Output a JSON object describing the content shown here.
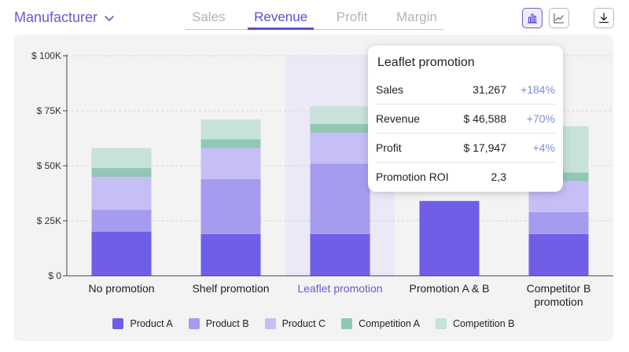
{
  "header": {
    "selector_label": "Manufacturer",
    "tabs": [
      {
        "label": "Sales"
      },
      {
        "label": "Revenue"
      },
      {
        "label": "Profit"
      },
      {
        "label": "Margin"
      }
    ],
    "active_tab": "Revenue"
  },
  "tooltip": {
    "title": "Leaflet promotion",
    "rows": [
      {
        "label": "Sales",
        "value": "31,267",
        "delta": "+184%"
      },
      {
        "label": "Revenue",
        "value": "$ 46,588",
        "delta": "+70%"
      },
      {
        "label": "Profit",
        "value": "$ 17,947",
        "delta": "+4%"
      },
      {
        "label": "Promotion ROI",
        "value": "2,3",
        "delta": ""
      }
    ]
  },
  "chart_data": {
    "type": "bar",
    "stacked": true,
    "categories": [
      "No promotion",
      "Shelf promotion",
      "Leaflet promotion",
      "Promotion A & B",
      "Competitor B promotion"
    ],
    "highlighted_category": "Leaflet promotion",
    "ylim": [
      0,
      100000
    ],
    "yticks": [
      0,
      25000,
      50000,
      75000,
      100000
    ],
    "ytick_labels": [
      "$ 0",
      "$ 25K",
      "$ 50K",
      "$ 75K",
      "$ 100K"
    ],
    "grid": true,
    "legend_position": "bottom",
    "series": [
      {
        "name": "Product A",
        "color": "#6e5ee8",
        "values": [
          20000,
          19000,
          19000,
          34000,
          19000
        ]
      },
      {
        "name": "Product B",
        "color": "#a59cef",
        "values": [
          10000,
          25000,
          32000,
          0,
          10000
        ]
      },
      {
        "name": "Product C",
        "color": "#c6bff6",
        "values": [
          15000,
          14000,
          14000,
          0,
          14000
        ]
      },
      {
        "name": "Competition A",
        "color": "#92c7b6",
        "values": [
          4000,
          4000,
          4000,
          0,
          4000
        ]
      },
      {
        "name": "Competition B",
        "color": "#c6e2da",
        "values": [
          9000,
          9000,
          8000,
          0,
          21000
        ]
      }
    ]
  }
}
